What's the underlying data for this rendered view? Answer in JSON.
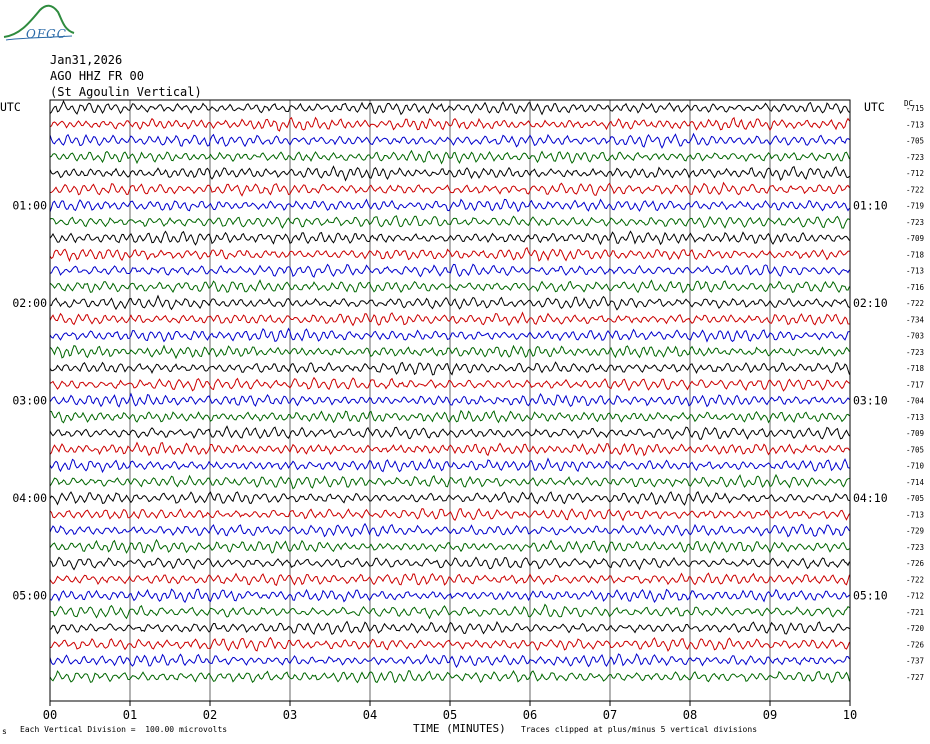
{
  "logo": {
    "text": "OFGC",
    "colors": {
      "swoosh": "#2e8b3e",
      "text": "#2a6aa8"
    }
  },
  "header": {
    "date": "Jan31,2026",
    "station": "AGO HHZ FR 00",
    "station_name": "(St Agoulin Vertical)"
  },
  "chart_data": {
    "type": "line",
    "title": "AGO HHZ FR 00",
    "left_axis_label": "UTC",
    "right_axis_label": "UTC",
    "dc_label": "DC",
    "left_hour_labels": [
      "01:00",
      "02:00",
      "03:00",
      "04:00",
      "05:00"
    ],
    "right_hour_labels": [
      "01:10",
      "02:10",
      "03:10",
      "04:10",
      "05:10"
    ],
    "x_ticks": [
      "00",
      "01",
      "02",
      "03",
      "04",
      "05",
      "06",
      "07",
      "08",
      "09",
      "10"
    ],
    "xlabel": "TIME (MINUTES)",
    "xlim": [
      0,
      10
    ],
    "trace_colors": [
      "#000000",
      "#cc0000",
      "#0000cc",
      "#006600"
    ],
    "dc_offsets": [
      "-715",
      "-713",
      "-705",
      "-723",
      "-712",
      "-722",
      "-719",
      "-723",
      "-709",
      "-718",
      "-713",
      "-716",
      "-722",
      "-734",
      "-703",
      "-723",
      "-718",
      "-717",
      "-704",
      "-713",
      "-709",
      "-705",
      "-710",
      "-714",
      "-705",
      "-713",
      "-729",
      "-723",
      "-726",
      "-722",
      "-712",
      "-721",
      "-720",
      "-726",
      "-737",
      "-727"
    ],
    "trace_count": 36,
    "grid": true
  },
  "footer": {
    "scale_note": "Each Vertical Division =  100.00 microvolts",
    "clip_note": "Traces clipped at plus/minus 5 vertical divisions",
    "corner_mark": "s"
  }
}
